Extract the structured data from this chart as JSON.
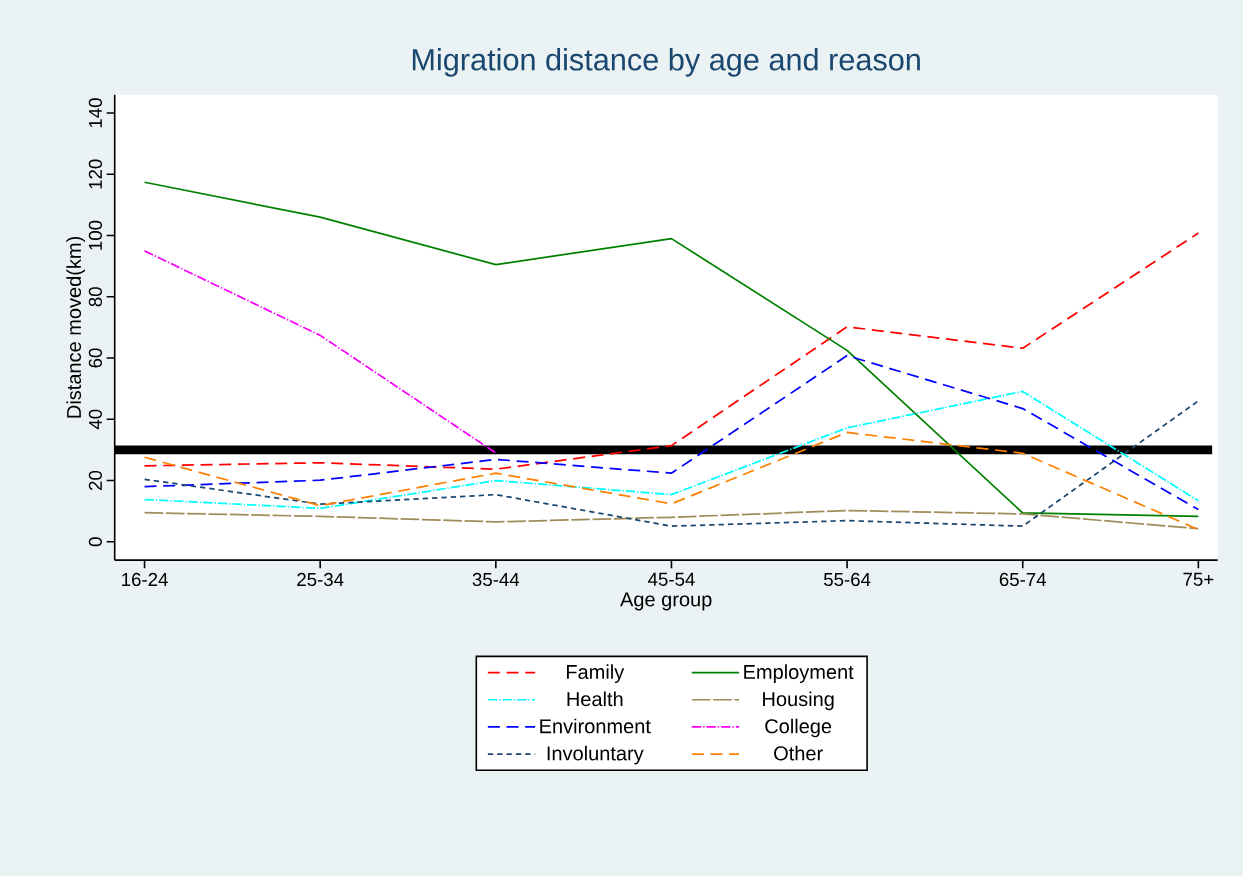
{
  "chart_data": {
    "type": "line",
    "title": "Migration distance by age and reason",
    "xlabel": "Age group",
    "ylabel": "Distance moved(km)",
    "categories": [
      "16-24",
      "25-34",
      "35-44",
      "45-54",
      "55-64",
      "65-74",
      "75+"
    ],
    "ylim": [
      -6,
      146
    ],
    "yticks": [
      0,
      20,
      40,
      60,
      80,
      100,
      120,
      140
    ],
    "legend": "bottom",
    "ref_lines": [
      {
        "axis": "y",
        "value": 30,
        "color": "#000000"
      }
    ],
    "series": [
      {
        "name": "Family",
        "color": "#ff0000",
        "line_style": "dashed",
        "values": [
          24.8,
          25.8,
          23.7,
          31.4,
          70.2,
          63.2,
          100.8
        ]
      },
      {
        "name": "Employment",
        "color": "#008000",
        "line_style": "solid",
        "values": [
          117.4,
          106,
          90.5,
          99,
          62.5,
          9.4,
          8.3
        ]
      },
      {
        "name": "Health",
        "color": "#00ffff",
        "line_style": "dashdot",
        "values": [
          13.8,
          10.9,
          20,
          15.4,
          37.2,
          49.1,
          13.4
        ]
      },
      {
        "name": "Housing",
        "color": "#a08c5a",
        "line_style": "longdash",
        "values": [
          9.5,
          8.3,
          6.5,
          8,
          10.2,
          9.1,
          4.3
        ]
      },
      {
        "name": "Environment",
        "color": "#0000ff",
        "line_style": "dashed",
        "values": [
          18,
          20.1,
          26.9,
          22.4,
          60.8,
          43.5,
          10.5
        ]
      },
      {
        "name": "College",
        "color": "#ff00ff",
        "line_style": "dashdot",
        "values": [
          95,
          67.4,
          29,
          null,
          null,
          null,
          null
        ]
      },
      {
        "name": "Involuntary",
        "color": "#1a476f",
        "line_style": "shortdash",
        "values": [
          20.4,
          12.3,
          15.4,
          5.1,
          6.9,
          5.1,
          46
        ]
      },
      {
        "name": "Other",
        "color": "#ff8000",
        "line_style": "dashed",
        "values": [
          27.6,
          11.8,
          22.4,
          12.4,
          35.7,
          28.9,
          4
        ]
      }
    ]
  }
}
